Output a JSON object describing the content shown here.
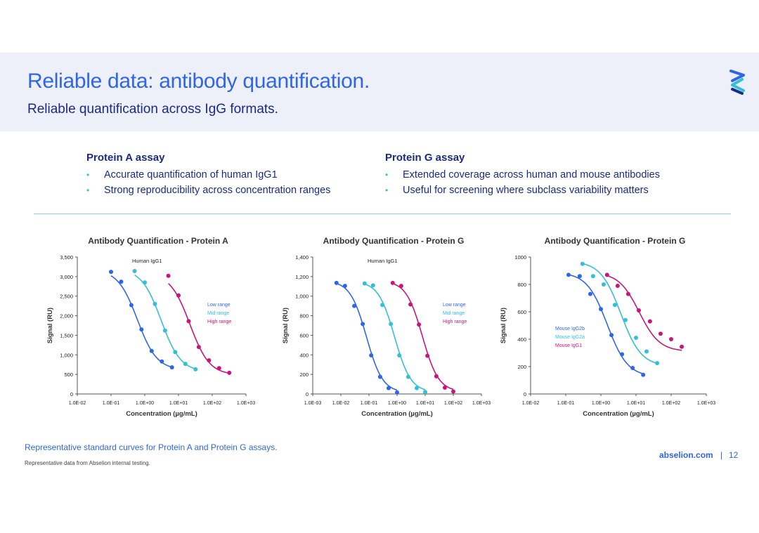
{
  "header": {
    "title": "Reliable data: antibody quantification.",
    "subtitle": "Reliable quantification across IgG formats."
  },
  "assays": [
    {
      "heading": "Protein A assay",
      "bullets": [
        "Accurate quantification of human IgG1",
        "Strong reproducibility across concentration ranges"
      ]
    },
    {
      "heading": "Protein G assay",
      "bullets": [
        "Extended coverage across human and mouse antibodies",
        "Useful for screening where subclass variability matters"
      ]
    }
  ],
  "footer": {
    "caption": "Representative standard curves for Protein A and Protein G assays.",
    "note": "Representative data from Abselion internal testing.",
    "site": "abselion.com",
    "separator": "|",
    "page": "12"
  },
  "colors": {
    "brand_blue": "#2f66e8",
    "navy": "#1b2a86",
    "cyan": "#33bfd8",
    "magenta": "#c8157d"
  },
  "chart_data": [
    {
      "type": "scatter",
      "title": "Antibody Quantification - Protein A",
      "xlabel": "Concentration (µg/mL)",
      "ylabel": "Signal (RU)",
      "xscale": "log",
      "xlim_exp": [
        -2,
        3
      ],
      "ylim": [
        0,
        3500
      ],
      "yticks": [
        0,
        500,
        1000,
        1500,
        2000,
        2500,
        3000,
        3500
      ],
      "ytick_labels": [
        "0",
        "500",
        "1,000",
        "1,500",
        "2,000",
        "2,500",
        "3,000",
        "3,500"
      ],
      "xtick_labels": [
        "1.0E-02",
        "1.0E-01",
        "1.0E+00",
        "1.0E+01",
        "1.0E+02",
        "1.0E+03"
      ],
      "annotation": "Human IgG1",
      "legend_position": "right",
      "series": [
        {
          "name": "Low range",
          "color": "#2f66e8",
          "x": [
            0.1,
            0.2,
            0.4,
            0.8,
            1.6,
            3.2,
            6.4
          ],
          "y": [
            3120,
            2870,
            2270,
            1650,
            1100,
            830,
            680
          ]
        },
        {
          "name": "Mid range",
          "color": "#33bfd8",
          "x": [
            0.5,
            1,
            2,
            4,
            8,
            16,
            32
          ],
          "y": [
            3140,
            2850,
            2300,
            1620,
            1070,
            770,
            630
          ]
        },
        {
          "name": "High range",
          "color": "#c8157d",
          "x": [
            5,
            10,
            20,
            40,
            80,
            160,
            320
          ],
          "y": [
            3020,
            2520,
            1860,
            1200,
            860,
            660,
            540
          ]
        }
      ]
    },
    {
      "type": "scatter",
      "title": "Antibody Quantification - Protein G",
      "xlabel": "Concentration (µg/mL)",
      "ylabel": "Signal (RU)",
      "xscale": "log",
      "xlim_exp": [
        -3,
        3
      ],
      "ylim": [
        0,
        1400
      ],
      "yticks": [
        0,
        200,
        400,
        600,
        800,
        1000,
        1200,
        1400
      ],
      "ytick_labels": [
        "0",
        "200",
        "400",
        "600",
        "800",
        "1,000",
        "1,200",
        "1,400"
      ],
      "xtick_labels": [
        "1.0E-03",
        "1.0E-02",
        "1.0E-01",
        "1.0E+00",
        "1.0E+01",
        "1.0E+02",
        "1.0E+03"
      ],
      "annotation": "Human IgG1",
      "legend_position": "right",
      "series": [
        {
          "name": "Low range",
          "color": "#2f66e8",
          "x": [
            0.007,
            0.014,
            0.03,
            0.06,
            0.12,
            0.25,
            0.5,
            1
          ],
          "y": [
            1135,
            1105,
            900,
            715,
            395,
            175,
            60,
            15
          ]
        },
        {
          "name": "Mid range",
          "color": "#33bfd8",
          "x": [
            0.07,
            0.14,
            0.3,
            0.6,
            1.2,
            2.5,
            5,
            10
          ],
          "y": [
            1130,
            1110,
            910,
            715,
            395,
            175,
            60,
            20
          ]
        },
        {
          "name": "High range",
          "color": "#c8157d",
          "x": [
            0.7,
            1.4,
            3,
            6,
            12,
            25,
            50,
            100
          ],
          "y": [
            1135,
            1105,
            915,
            710,
            390,
            180,
            65,
            25
          ]
        }
      ]
    },
    {
      "type": "scatter",
      "title": "Antibody Quantification - Protein G",
      "xlabel": "Concentration (µg/mL)",
      "ylabel": "Signal (RU)",
      "xscale": "log",
      "xlim_exp": [
        -2,
        3
      ],
      "ylim": [
        0,
        1000
      ],
      "yticks": [
        0,
        200,
        400,
        600,
        800,
        1000
      ],
      "ytick_labels": [
        "0",
        "200",
        "400",
        "600",
        "800",
        "1000"
      ],
      "xtick_labels": [
        "1.0E-02",
        "1.0E-01",
        "1.0E+00",
        "1.0E+01",
        "1.0E+02",
        "1.0E+03"
      ],
      "annotation": "",
      "legend_position": "left",
      "series": [
        {
          "name": "Mouse IgG2b",
          "color": "#2f66e8",
          "x": [
            0.12,
            0.25,
            0.5,
            1,
            2,
            4,
            8,
            16
          ],
          "y": [
            870,
            860,
            730,
            620,
            430,
            290,
            190,
            140
          ]
        },
        {
          "name": "Mouse IgG2a",
          "color": "#33bfd8",
          "x": [
            0.3,
            0.6,
            1.2,
            2.5,
            5,
            10,
            20,
            40
          ],
          "y": [
            950,
            860,
            800,
            650,
            540,
            410,
            310,
            225
          ]
        },
        {
          "name": "Mouse IgG1",
          "color": "#c8157d",
          "x": [
            1.5,
            3,
            6,
            12,
            25,
            50,
            100,
            200
          ],
          "y": [
            870,
            790,
            730,
            610,
            530,
            440,
            400,
            345
          ]
        }
      ]
    }
  ]
}
